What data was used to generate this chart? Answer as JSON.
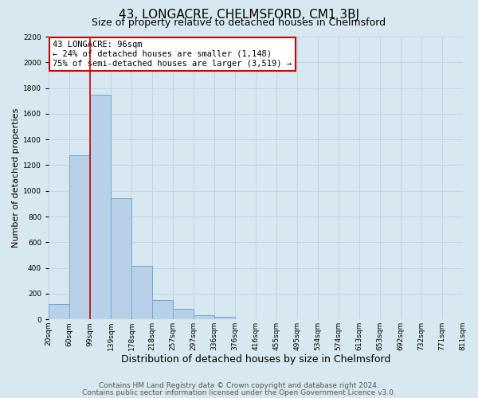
{
  "title": "43, LONGACRE, CHELMSFORD, CM1 3BJ",
  "subtitle": "Size of property relative to detached houses in Chelmsford",
  "bar_values": [
    120,
    1280,
    1750,
    940,
    415,
    150,
    80,
    35,
    20,
    0,
    0,
    0,
    0,
    0,
    0,
    0,
    0,
    0,
    0,
    0
  ],
  "bin_labels": [
    "20sqm",
    "60sqm",
    "99sqm",
    "139sqm",
    "178sqm",
    "218sqm",
    "257sqm",
    "297sqm",
    "336sqm",
    "376sqm",
    "416sqm",
    "455sqm",
    "495sqm",
    "534sqm",
    "574sqm",
    "613sqm",
    "653sqm",
    "692sqm",
    "732sqm",
    "771sqm",
    "811sqm"
  ],
  "bar_color": "#b8d0e8",
  "bar_edge_color": "#6aaad4",
  "bar_edge_width": 0.7,
  "grid_color": "#c0d4e4",
  "background_color": "#d8e8f0",
  "vline_color": "#cc0000",
  "vline_linewidth": 1.2,
  "annotation_line1": "43 LONGACRE: 96sqm",
  "annotation_line2": "← 24% of detached houses are smaller (1,148)",
  "annotation_line3": "75% of semi-detached houses are larger (3,519) →",
  "annotation_fontsize": 7.5,
  "xlabel": "Distribution of detached houses by size in Chelmsford",
  "ylabel": "Number of detached properties",
  "ylim": [
    0,
    2200
  ],
  "yticks": [
    0,
    200,
    400,
    600,
    800,
    1000,
    1200,
    1400,
    1600,
    1800,
    2000,
    2200
  ],
  "footnote1": "Contains HM Land Registry data © Crown copyright and database right 2024.",
  "footnote2": "Contains public sector information licensed under the Open Government Licence v3.0.",
  "title_fontsize": 11,
  "subtitle_fontsize": 9,
  "xlabel_fontsize": 9,
  "ylabel_fontsize": 8,
  "tick_fontsize": 6.5,
  "footnote_fontsize": 6.5
}
